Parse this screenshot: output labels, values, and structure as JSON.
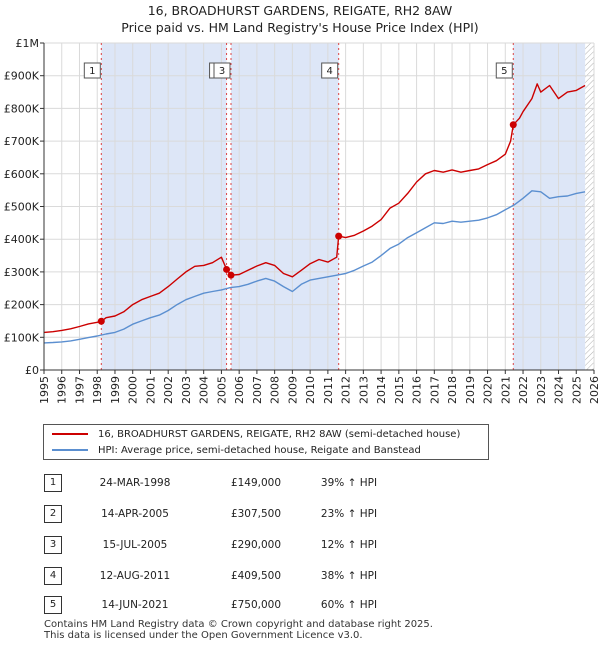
{
  "title_line1": "16, BROADHURST GARDENS, REIGATE, RH2 8AW",
  "title_line2": "Price paid vs. HM Land Registry's House Price Index (HPI)",
  "colors": {
    "property": "#cc0000",
    "hpi": "#5b8fd0",
    "shade": "#dde6f7",
    "marker_line": "#dd4444",
    "hatch": "#b0b0b0"
  },
  "legend": {
    "property_label": "16, BROADHURST GARDENS, REIGATE, RH2 8AW (semi-detached house)",
    "hpi_label": "HPI: Average price, semi-detached house, Reigate and Banstead"
  },
  "sales": [
    {
      "num": "1",
      "date": "24-MAR-1998",
      "price": "£149,000",
      "hpi": "39% ↑ HPI"
    },
    {
      "num": "2",
      "date": "14-APR-2005",
      "price": "£307,500",
      "hpi": "23% ↑ HPI"
    },
    {
      "num": "3",
      "date": "15-JUL-2005",
      "price": "£290,000",
      "hpi": "12% ↑ HPI"
    },
    {
      "num": "4",
      "date": "12-AUG-2011",
      "price": "£409,500",
      "hpi": "38% ↑ HPI"
    },
    {
      "num": "5",
      "date": "14-JUN-2021",
      "price": "£750,000",
      "hpi": "60% ↑ HPI"
    }
  ],
  "footer_line1": "Contains HM Land Registry data © Crown copyright and database right 2025.",
  "footer_line2": "This data is licensed under the Open Government Licence v3.0.",
  "chart_data": {
    "type": "line",
    "title": "16, BROADHURST GARDENS, REIGATE, RH2 8AW — Price paid vs. HM Land Registry's House Price Index (HPI)",
    "xlabel": "",
    "ylabel": "",
    "xlim": [
      1995,
      2026
    ],
    "ylim": [
      0,
      1000000
    ],
    "x_ticks": [
      1995,
      1996,
      1997,
      1998,
      1999,
      2000,
      2001,
      2002,
      2003,
      2004,
      2005,
      2006,
      2007,
      2008,
      2009,
      2010,
      2011,
      2012,
      2013,
      2014,
      2015,
      2016,
      2017,
      2018,
      2019,
      2020,
      2021,
      2022,
      2023,
      2024,
      2025,
      2026
    ],
    "y_ticks": [
      {
        "value": 0,
        "label": "£0"
      },
      {
        "value": 100000,
        "label": "£100K"
      },
      {
        "value": 200000,
        "label": "£200K"
      },
      {
        "value": 300000,
        "label": "£300K"
      },
      {
        "value": 400000,
        "label": "£400K"
      },
      {
        "value": 500000,
        "label": "£500K"
      },
      {
        "value": 600000,
        "label": "£600K"
      },
      {
        "value": 700000,
        "label": "£700K"
      },
      {
        "value": 800000,
        "label": "£800K"
      },
      {
        "value": 900000,
        "label": "£900K"
      },
      {
        "value": 1000000,
        "label": "£1M"
      }
    ],
    "grid": true,
    "shaded_periods": [
      [
        1998.23,
        2005.29
      ],
      [
        2005.54,
        2011.61
      ],
      [
        2021.45,
        2025.5
      ]
    ],
    "forecast_hatch_start": 2025.5,
    "sale_markers": [
      {
        "label": "1",
        "x": 1998.23,
        "y": 149000
      },
      {
        "label": "2",
        "x": 2005.29,
        "y": 307500
      },
      {
        "label": "3",
        "x": 2005.54,
        "y": 290000
      },
      {
        "label": "4",
        "x": 2011.61,
        "y": 409500
      },
      {
        "label": "5",
        "x": 2021.45,
        "y": 750000
      }
    ],
    "series": [
      {
        "name": "16, BROADHURST GARDENS, REIGATE, RH2 8AW (semi-detached house)",
        "x": [
          1995,
          1995.5,
          1996,
          1996.5,
          1997,
          1997.5,
          1998,
          1998.23,
          1998.5,
          1999,
          1999.5,
          2000,
          2000.5,
          2001,
          2001.5,
          2002,
          2002.5,
          2003,
          2003.5,
          2004,
          2004.5,
          2005,
          2005.29,
          2005.4,
          2005.54,
          2006,
          2006.5,
          2007,
          2007.5,
          2008,
          2008.5,
          2009,
          2009.5,
          2010,
          2010.5,
          2011,
          2011.5,
          2011.61,
          2012,
          2012.5,
          2013,
          2013.5,
          2014,
          2014.5,
          2015,
          2015.5,
          2016,
          2016.5,
          2017,
          2017.5,
          2018,
          2018.5,
          2019,
          2019.5,
          2020,
          2020.5,
          2021,
          2021.3,
          2021.45,
          2021.8,
          2022,
          2022.5,
          2022.8,
          2023,
          2023.5,
          2024,
          2024.5,
          2025,
          2025.5
        ],
        "values": [
          115000,
          117000,
          121000,
          126000,
          133000,
          141000,
          146000,
          149000,
          160000,
          165000,
          178000,
          200000,
          215000,
          225000,
          235000,
          255000,
          278000,
          300000,
          317000,
          320000,
          328000,
          345000,
          307500,
          300000,
          290000,
          292000,
          305000,
          318000,
          328000,
          320000,
          295000,
          285000,
          305000,
          325000,
          338000,
          330000,
          345000,
          409500,
          405000,
          412000,
          425000,
          440000,
          460000,
          495000,
          510000,
          540000,
          575000,
          600000,
          610000,
          605000,
          612000,
          605000,
          610000,
          615000,
          628000,
          640000,
          660000,
          700000,
          750000,
          770000,
          790000,
          830000,
          875000,
          850000,
          870000,
          830000,
          850000,
          855000,
          870000
        ]
      },
      {
        "name": "HPI: Average price, semi-detached house, Reigate and Banstead",
        "x": [
          1995,
          1995.5,
          1996,
          1996.5,
          1997,
          1997.5,
          1998,
          1998.5,
          1999,
          1999.5,
          2000,
          2000.5,
          2001,
          2001.5,
          2002,
          2002.5,
          2003,
          2003.5,
          2004,
          2004.5,
          2005,
          2005.5,
          2006,
          2006.5,
          2007,
          2007.5,
          2008,
          2008.5,
          2009,
          2009.5,
          2010,
          2010.5,
          2011,
          2011.5,
          2012,
          2012.5,
          2013,
          2013.5,
          2014,
          2014.5,
          2015,
          2015.5,
          2016,
          2016.5,
          2017,
          2017.5,
          2018,
          2018.5,
          2019,
          2019.5,
          2020,
          2020.5,
          2021,
          2021.5,
          2022,
          2022.5,
          2023,
          2023.5,
          2024,
          2024.5,
          2025,
          2025.5
        ],
        "values": [
          83000,
          84000,
          86000,
          89000,
          94000,
          99000,
          104000,
          110000,
          115000,
          125000,
          140000,
          150000,
          160000,
          168000,
          182000,
          200000,
          215000,
          225000,
          235000,
          240000,
          245000,
          252000,
          255000,
          262000,
          272000,
          280000,
          272000,
          255000,
          240000,
          262000,
          275000,
          280000,
          285000,
          290000,
          295000,
          305000,
          318000,
          330000,
          350000,
          372000,
          385000,
          405000,
          420000,
          435000,
          450000,
          448000,
          455000,
          452000,
          455000,
          458000,
          465000,
          475000,
          490000,
          505000,
          525000,
          548000,
          545000,
          525000,
          530000,
          532000,
          540000,
          545000
        ]
      }
    ]
  }
}
